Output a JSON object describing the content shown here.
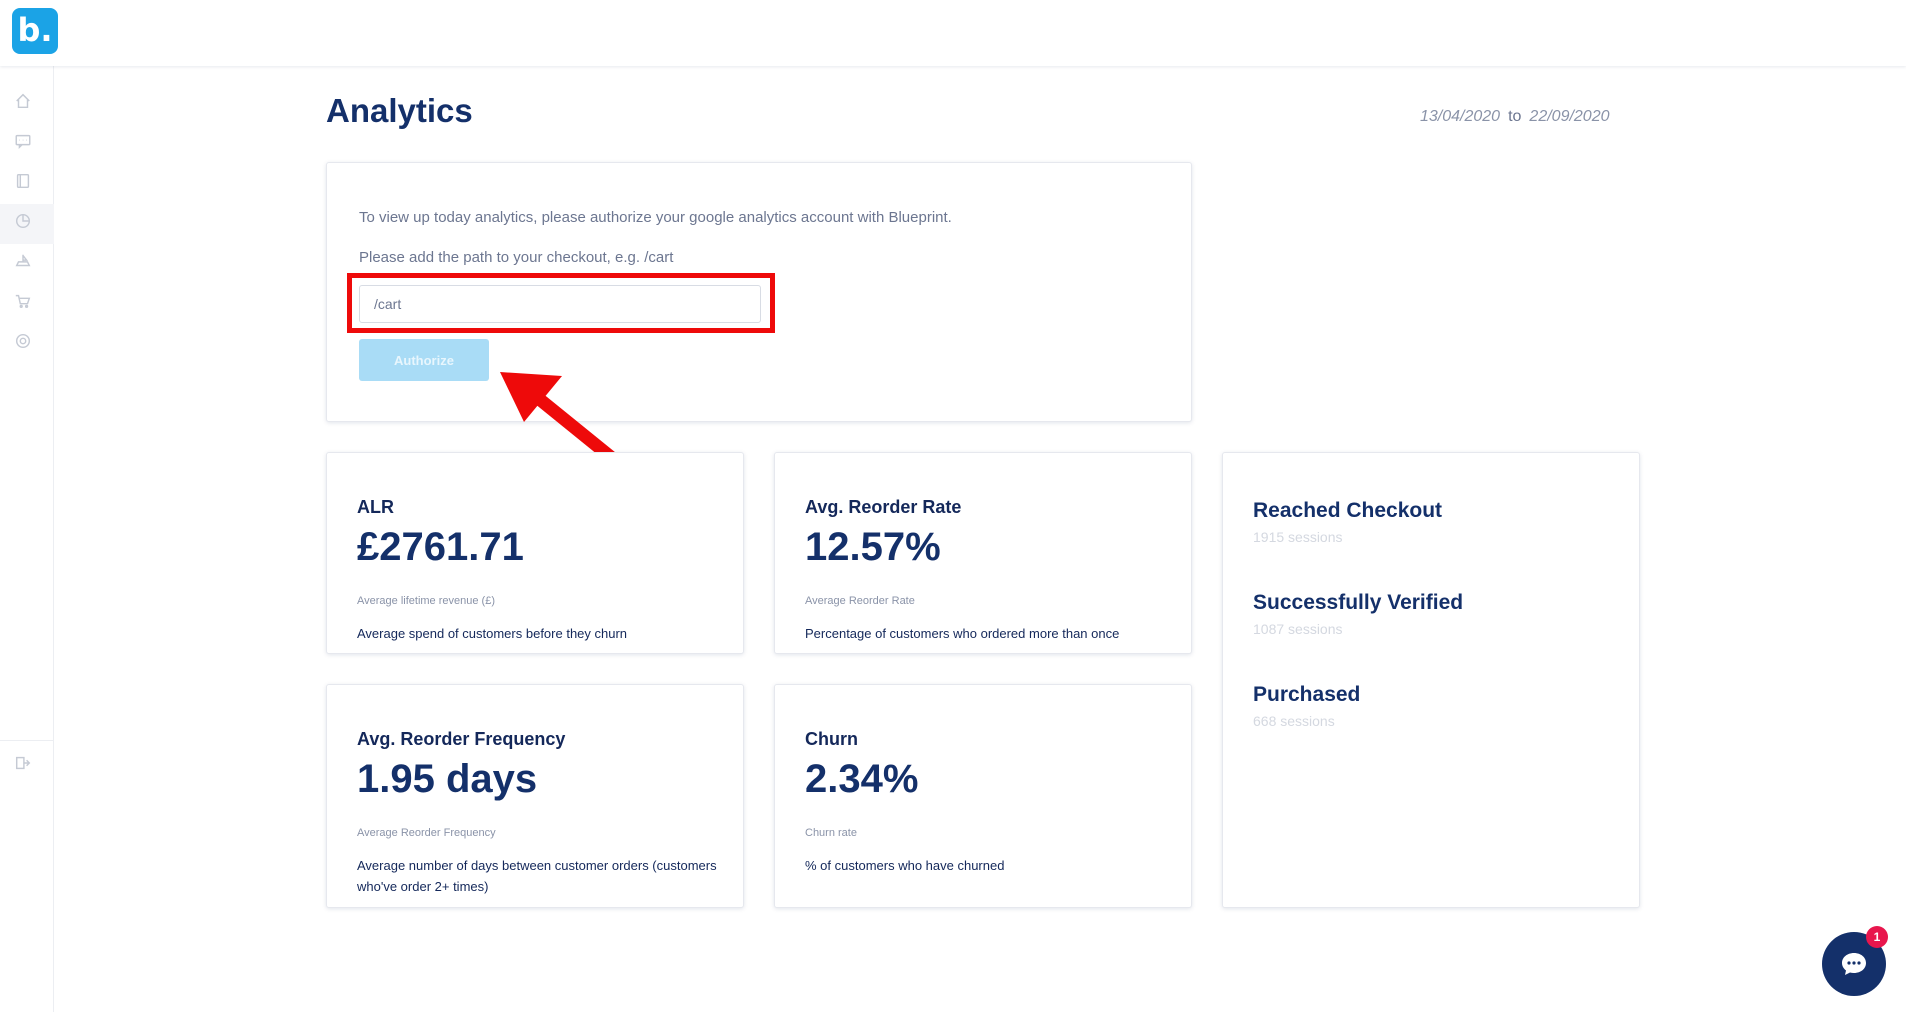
{
  "app": {
    "logo_text": "b."
  },
  "sidebar": {
    "items": [
      {
        "icon": "home-icon"
      },
      {
        "icon": "messages-icon"
      },
      {
        "icon": "book-icon"
      },
      {
        "icon": "analytics-icon",
        "active": true
      },
      {
        "icon": "shipping-icon"
      },
      {
        "icon": "cart-icon"
      },
      {
        "icon": "settings-icon"
      }
    ],
    "bottom_icon": "logout-icon"
  },
  "page": {
    "title": "Analytics",
    "date_from": "13/04/2020",
    "date_to_label": "to",
    "date_to": "22/09/2020"
  },
  "authorize": {
    "message": "To view up today analytics, please authorize your google analytics account with Blueprint.",
    "path_prompt": "Please add the path to your checkout, e.g. /cart",
    "input_value": "/cart",
    "button_label": "Authorize",
    "highlight_color": "#ee0a0a"
  },
  "metrics": [
    {
      "title": "ALR",
      "value": "£2761.71",
      "subtitle": "Average lifetime revenue (£)",
      "description": "Average spend of customers before they churn"
    },
    {
      "title": "Avg. Reorder Rate",
      "value": "12.57%",
      "subtitle": "Average Reorder Rate",
      "description": "Percentage of customers who ordered more than once"
    },
    {
      "title": "Avg. Reorder Frequency",
      "value": "1.95 days",
      "subtitle": "Average Reorder Frequency",
      "description": "Average number of days between customer orders (customers who've order 2+ times)"
    },
    {
      "title": "Churn",
      "value": "2.34%",
      "subtitle": "Churn rate",
      "description": "% of customers who have churned"
    }
  ],
  "funnel": [
    {
      "label": "Reached Checkout",
      "sessions": "1915 sessions"
    },
    {
      "label": "Successfully Verified",
      "sessions": "1087 sessions"
    },
    {
      "label": "Purchased",
      "sessions": "668 sessions"
    }
  ],
  "chat": {
    "badge_count": "1",
    "icon": "chat-bubble-icon"
  },
  "colors": {
    "brand": "#1ba3e6",
    "navy": "#14306a",
    "badge": "#e8164d"
  }
}
